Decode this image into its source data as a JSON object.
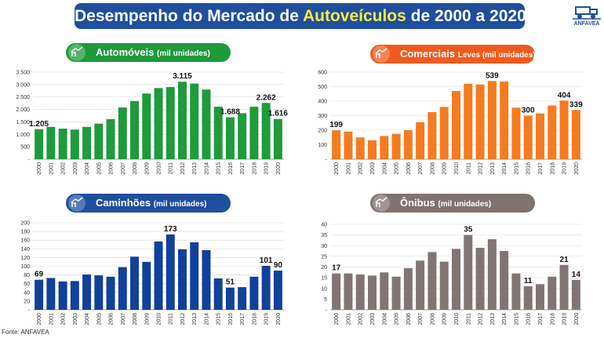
{
  "title": {
    "prefix": "Desempenho do Mercado de ",
    "highlight": "Autoveículos",
    "suffix": " de 2000 a 2020"
  },
  "logo": {
    "text": "ANFAVEA",
    "icon": "truck-car-icon"
  },
  "source": "Fonte: ANFAVEA",
  "colors": {
    "banner": "#1f4e9c",
    "highlight": "#ffeb3b"
  },
  "chart_data": [
    {
      "type": "bar",
      "title": "Automóveis",
      "title_unit": "(mil unidades)",
      "color": "#1f9a3c",
      "pill_color": "#1e9a3a",
      "categories": [
        "2000",
        "2001",
        "2002",
        "2003",
        "2004",
        "2005",
        "2006",
        "2007",
        "2008",
        "2009",
        "2010",
        "2011",
        "2012",
        "2013",
        "2014",
        "2015",
        "2016",
        "2017",
        "2018",
        "2019",
        "2020"
      ],
      "values": [
        1205,
        1300,
        1230,
        1190,
        1300,
        1430,
        1610,
        2080,
        2340,
        2640,
        2860,
        2900,
        3115,
        3040,
        2800,
        2110,
        1688,
        1850,
        2110,
        2262,
        1616
      ],
      "ylim": [
        0,
        3500
      ],
      "yticks": [
        0,
        500,
        1000,
        1500,
        2000,
        2500,
        3000,
        3500
      ],
      "ytick_labels": [
        "-",
        "500",
        "1.000",
        "1.500",
        "2.000",
        "2.500",
        "3.000",
        "3.500"
      ],
      "data_labels": [
        {
          "index": 0,
          "text": "1.205"
        },
        {
          "index": 12,
          "text": "3.115"
        },
        {
          "index": 16,
          "text": "1.688"
        },
        {
          "index": 19,
          "text": "2.262"
        },
        {
          "index": 20,
          "text": "1.616"
        }
      ]
    },
    {
      "type": "bar",
      "title": "Comerciais",
      "title_unit": "Leves (mil unidades)",
      "color": "#f47b20",
      "pill_color": "#f05a1e",
      "categories": [
        "2000",
        "2001",
        "2002",
        "2003",
        "2004",
        "2005",
        "2006",
        "2007",
        "2008",
        "2009",
        "2010",
        "2011",
        "2012",
        "2013",
        "2014",
        "2015",
        "2016",
        "2017",
        "2018",
        "2019",
        "2020"
      ],
      "values": [
        199,
        190,
        150,
        130,
        160,
        175,
        200,
        255,
        325,
        360,
        470,
        520,
        515,
        539,
        535,
        355,
        300,
        315,
        370,
        404,
        339
      ],
      "ylim": [
        0,
        600
      ],
      "yticks": [
        0,
        100,
        200,
        300,
        400,
        500,
        600
      ],
      "ytick_labels": [
        "-",
        "100",
        "200",
        "300",
        "400",
        "500",
        "600"
      ],
      "data_labels": [
        {
          "index": 0,
          "text": "199"
        },
        {
          "index": 13,
          "text": "539"
        },
        {
          "index": 16,
          "text": "300"
        },
        {
          "index": 19,
          "text": "404"
        },
        {
          "index": 20,
          "text": "339"
        }
      ]
    },
    {
      "type": "bar",
      "title": "Caminhões",
      "title_unit": "(mil unidades)",
      "color": "#12409a",
      "pill_color": "#1f4e9c",
      "categories": [
        "2000",
        "2001",
        "2002",
        "2003",
        "2004",
        "2005",
        "2006",
        "2007",
        "2008",
        "2009",
        "2010",
        "2011",
        "2012",
        "2013",
        "2014",
        "2015",
        "2016",
        "2017",
        "2018",
        "2019",
        "2020"
      ],
      "values": [
        69,
        73,
        65,
        66,
        81,
        79,
        76,
        98,
        122,
        110,
        157,
        173,
        139,
        155,
        137,
        72,
        51,
        52,
        76,
        101,
        90
      ],
      "ylim": [
        0,
        200
      ],
      "yticks": [
        0,
        20,
        40,
        60,
        80,
        100,
        120,
        140,
        160,
        180,
        200
      ],
      "ytick_labels": [
        "-",
        "20",
        "40",
        "60",
        "80",
        "100",
        "120",
        "140",
        "160",
        "180",
        "200"
      ],
      "data_labels": [
        {
          "index": 0,
          "text": "69"
        },
        {
          "index": 11,
          "text": "173"
        },
        {
          "index": 16,
          "text": "51"
        },
        {
          "index": 19,
          "text": "101"
        },
        {
          "index": 20,
          "text": "90"
        }
      ]
    },
    {
      "type": "bar",
      "title": "Ônibus",
      "title_unit": "(mil unidades)",
      "color": "#817574",
      "pill_color": "#7f7271",
      "categories": [
        "2000",
        "2001",
        "2002",
        "2003",
        "2004",
        "2005",
        "2006",
        "2007",
        "2008",
        "2009",
        "2010",
        "2011",
        "2012",
        "2013",
        "2014",
        "2015",
        "2016",
        "2017",
        "2018",
        "2019",
        "2020"
      ],
      "values": [
        17,
        17,
        16.5,
        16,
        17.5,
        15.5,
        19.5,
        23,
        27,
        22.5,
        28.5,
        35,
        29,
        33,
        27.5,
        17,
        11,
        12,
        15.5,
        21,
        14
      ],
      "ylim": [
        0,
        40
      ],
      "yticks": [
        0,
        5,
        10,
        15,
        20,
        25,
        30,
        35,
        40
      ],
      "ytick_labels": [
        "-",
        "5",
        "10",
        "15",
        "20",
        "25",
        "30",
        "35",
        "40"
      ],
      "data_labels": [
        {
          "index": 0,
          "text": "17"
        },
        {
          "index": 11,
          "text": "35"
        },
        {
          "index": 16,
          "text": "11"
        },
        {
          "index": 19,
          "text": "21"
        },
        {
          "index": 20,
          "text": "14"
        }
      ]
    }
  ]
}
